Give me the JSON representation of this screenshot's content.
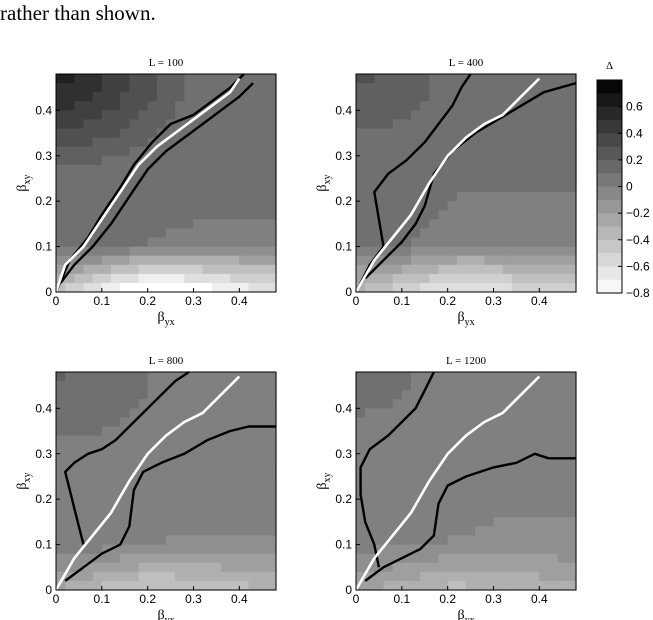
{
  "header": {
    "fragment": "rather than shown."
  },
  "chart_data": {
    "type": "heatmap",
    "colorbar": {
      "label": "Δ",
      "range": [
        -0.8,
        0.8
      ],
      "ticks": [
        0.6,
        0.4,
        0.2,
        0,
        -0.2,
        -0.4,
        -0.6,
        -0.8
      ],
      "tick_labels": [
        "0.6",
        "0.4",
        "0.2",
        "0",
        "−0.2",
        "−0.4",
        "−0.6",
        "−0.8"
      ],
      "colors": [
        "#ffffff",
        "#000000"
      ]
    },
    "panels": [
      {
        "title": "L = 100",
        "xlabel": {
          "main": "β",
          "sub": "yx"
        },
        "ylabel": {
          "main": "β",
          "sub": "xy"
        },
        "xlim": [
          0,
          0.48
        ],
        "ylim": [
          0,
          0.48
        ],
        "xticks": [
          0,
          0.1,
          0.2,
          0.3,
          0.4
        ],
        "xtick_labels": [
          "0",
          "0.1",
          "0.2",
          "0.3",
          "0.4"
        ],
        "yticks": [
          0,
          0.1,
          0.2,
          0.3,
          0.4
        ],
        "ytick_labels": [
          "0",
          "0.1",
          "0.2",
          "0.3",
          "0.4"
        ],
        "field": {
          "base": 0.12,
          "top_left": 0.62,
          "bottom": -0.7,
          "bottom_spread": 0.24
        },
        "white_curve": [
          [
            0.0,
            0.0
          ],
          [
            0.02,
            0.06
          ],
          [
            0.06,
            0.1
          ],
          [
            0.1,
            0.16
          ],
          [
            0.14,
            0.22
          ],
          [
            0.18,
            0.28
          ],
          [
            0.22,
            0.32
          ],
          [
            0.26,
            0.35
          ],
          [
            0.3,
            0.38
          ],
          [
            0.34,
            0.41
          ],
          [
            0.38,
            0.44
          ],
          [
            0.4,
            0.47
          ]
        ],
        "black_curves": [
          [
            [
              0.0,
              0.0
            ],
            [
              0.03,
              0.07
            ],
            [
              0.07,
              0.12
            ],
            [
              0.1,
              0.17
            ],
            [
              0.14,
              0.23
            ],
            [
              0.17,
              0.28
            ],
            [
              0.21,
              0.33
            ],
            [
              0.25,
              0.37
            ],
            [
              0.3,
              0.39
            ],
            [
              0.34,
              0.42
            ],
            [
              0.38,
              0.45
            ],
            [
              0.41,
              0.48
            ]
          ],
          [
            [
              0.01,
              0.02
            ],
            [
              0.04,
              0.06
            ],
            [
              0.08,
              0.1
            ],
            [
              0.12,
              0.15
            ],
            [
              0.16,
              0.21
            ],
            [
              0.2,
              0.27
            ],
            [
              0.24,
              0.31
            ],
            [
              0.28,
              0.34
            ],
            [
              0.32,
              0.37
            ],
            [
              0.36,
              0.4
            ],
            [
              0.4,
              0.43
            ],
            [
              0.43,
              0.46
            ]
          ]
        ]
      },
      {
        "title": "L = 400",
        "xlabel": {
          "main": "β",
          "sub": "yx"
        },
        "ylabel": {
          "main": "β",
          "sub": "xy"
        },
        "xlim": [
          0,
          0.48
        ],
        "ylim": [
          0,
          0.48
        ],
        "xticks": [
          0,
          0.1,
          0.2,
          0.3,
          0.4
        ],
        "xtick_labels": [
          "0",
          "0.1",
          "0.2",
          "0.3",
          "0.4"
        ],
        "yticks": [
          0,
          0.1,
          0.2,
          0.3,
          0.4
        ],
        "ytick_labels": [
          "0",
          "0.1",
          "0.2",
          "0.3",
          "0.4"
        ],
        "field": {
          "base": 0.05,
          "top_left": 0.28,
          "bottom": -0.5,
          "bottom_spread": 0.18
        },
        "white_curve": [
          [
            0.0,
            0.0
          ],
          [
            0.04,
            0.07
          ],
          [
            0.08,
            0.12
          ],
          [
            0.12,
            0.17
          ],
          [
            0.16,
            0.24
          ],
          [
            0.2,
            0.3
          ],
          [
            0.24,
            0.34
          ],
          [
            0.28,
            0.37
          ],
          [
            0.32,
            0.39
          ],
          [
            0.36,
            0.43
          ],
          [
            0.4,
            0.47
          ]
        ],
        "black_curves": [
          [
            [
              0.0,
              0.0
            ],
            [
              0.03,
              0.06
            ],
            [
              0.06,
              0.1
            ],
            [
              0.05,
              0.16
            ],
            [
              0.04,
              0.22
            ],
            [
              0.07,
              0.26
            ],
            [
              0.11,
              0.29
            ],
            [
              0.15,
              0.33
            ],
            [
              0.18,
              0.37
            ],
            [
              0.21,
              0.41
            ],
            [
              0.23,
              0.45
            ],
            [
              0.25,
              0.48
            ]
          ],
          [
            [
              0.02,
              0.03
            ],
            [
              0.06,
              0.07
            ],
            [
              0.1,
              0.11
            ],
            [
              0.13,
              0.15
            ],
            [
              0.15,
              0.19
            ],
            [
              0.17,
              0.26
            ],
            [
              0.21,
              0.31
            ],
            [
              0.26,
              0.35
            ],
            [
              0.31,
              0.38
            ],
            [
              0.36,
              0.41
            ],
            [
              0.41,
              0.44
            ],
            [
              0.48,
              0.46
            ]
          ]
        ]
      },
      {
        "title": "L = 800",
        "xlabel": {
          "main": "β",
          "sub": "yx"
        },
        "ylabel": {
          "main": "β",
          "sub": "xy"
        },
        "xlim": [
          0,
          0.48
        ],
        "ylim": [
          0,
          0.48
        ],
        "xticks": [
          0,
          0.1,
          0.2,
          0.3,
          0.4
        ],
        "xtick_labels": [
          "0",
          "0.1",
          "0.2",
          "0.3",
          "0.4"
        ],
        "yticks": [
          0,
          0.1,
          0.2,
          0.3,
          0.4
        ],
        "ytick_labels": [
          "0",
          "0.1",
          "0.2",
          "0.3",
          "0.4"
        ],
        "field": {
          "base": 0.0,
          "top_left": 0.16,
          "bottom": -0.35,
          "bottom_spread": 0.12
        },
        "white_curve": [
          [
            0.0,
            0.0
          ],
          [
            0.04,
            0.07
          ],
          [
            0.08,
            0.12
          ],
          [
            0.12,
            0.17
          ],
          [
            0.16,
            0.24
          ],
          [
            0.2,
            0.3
          ],
          [
            0.24,
            0.34
          ],
          [
            0.28,
            0.37
          ],
          [
            0.32,
            0.39
          ],
          [
            0.36,
            0.43
          ],
          [
            0.4,
            0.47
          ]
        ],
        "black_curves": [
          [
            [
              0.06,
              0.1
            ],
            [
              0.05,
              0.14
            ],
            [
              0.04,
              0.18
            ],
            [
              0.03,
              0.22
            ],
            [
              0.02,
              0.26
            ],
            [
              0.04,
              0.28
            ],
            [
              0.07,
              0.3
            ],
            [
              0.1,
              0.31
            ],
            [
              0.13,
              0.33
            ],
            [
              0.16,
              0.36
            ],
            [
              0.19,
              0.39
            ],
            [
              0.22,
              0.42
            ],
            [
              0.26,
              0.46
            ],
            [
              0.29,
              0.48
            ]
          ],
          [
            [
              0.02,
              0.02
            ],
            [
              0.06,
              0.05
            ],
            [
              0.1,
              0.08
            ],
            [
              0.14,
              0.1
            ],
            [
              0.16,
              0.14
            ],
            [
              0.17,
              0.22
            ],
            [
              0.19,
              0.26
            ],
            [
              0.23,
              0.28
            ],
            [
              0.28,
              0.3
            ],
            [
              0.33,
              0.33
            ],
            [
              0.38,
              0.35
            ],
            [
              0.42,
              0.36
            ],
            [
              0.48,
              0.36
            ]
          ]
        ]
      },
      {
        "title": "L = 1200",
        "xlabel": {
          "main": "β",
          "sub": "yx"
        },
        "ylabel": {
          "main": "β",
          "sub": "xy"
        },
        "xlim": [
          0,
          0.48
        ],
        "ylim": [
          0,
          0.48
        ],
        "xticks": [
          0,
          0.1,
          0.2,
          0.3,
          0.4
        ],
        "xtick_labels": [
          "0",
          "0.1",
          "0.2",
          "0.3",
          "0.4"
        ],
        "yticks": [
          0,
          0.1,
          0.2,
          0.3,
          0.4
        ],
        "ytick_labels": [
          "0",
          "0.1",
          "0.2",
          "0.3",
          "0.4"
        ],
        "field": {
          "base": -0.02,
          "top_left": 0.1,
          "bottom": -0.28,
          "bottom_spread": 0.1
        },
        "white_curve": [
          [
            0.0,
            0.0
          ],
          [
            0.04,
            0.07
          ],
          [
            0.08,
            0.12
          ],
          [
            0.12,
            0.17
          ],
          [
            0.16,
            0.24
          ],
          [
            0.2,
            0.3
          ],
          [
            0.24,
            0.34
          ],
          [
            0.28,
            0.37
          ],
          [
            0.32,
            0.39
          ],
          [
            0.36,
            0.43
          ],
          [
            0.4,
            0.47
          ]
        ],
        "black_curves": [
          [
            [
              0.05,
              0.05
            ],
            [
              0.04,
              0.1
            ],
            [
              0.02,
              0.15
            ],
            [
              0.01,
              0.21
            ],
            [
              0.01,
              0.27
            ],
            [
              0.03,
              0.31
            ],
            [
              0.07,
              0.34
            ],
            [
              0.1,
              0.37
            ],
            [
              0.13,
              0.4
            ],
            [
              0.15,
              0.44
            ],
            [
              0.17,
              0.48
            ]
          ],
          [
            [
              0.02,
              0.02
            ],
            [
              0.06,
              0.05
            ],
            [
              0.1,
              0.07
            ],
            [
              0.14,
              0.09
            ],
            [
              0.17,
              0.12
            ],
            [
              0.18,
              0.19
            ],
            [
              0.2,
              0.23
            ],
            [
              0.24,
              0.25
            ],
            [
              0.3,
              0.27
            ],
            [
              0.35,
              0.28
            ],
            [
              0.39,
              0.3
            ],
            [
              0.42,
              0.29
            ],
            [
              0.48,
              0.29
            ]
          ]
        ]
      }
    ]
  }
}
